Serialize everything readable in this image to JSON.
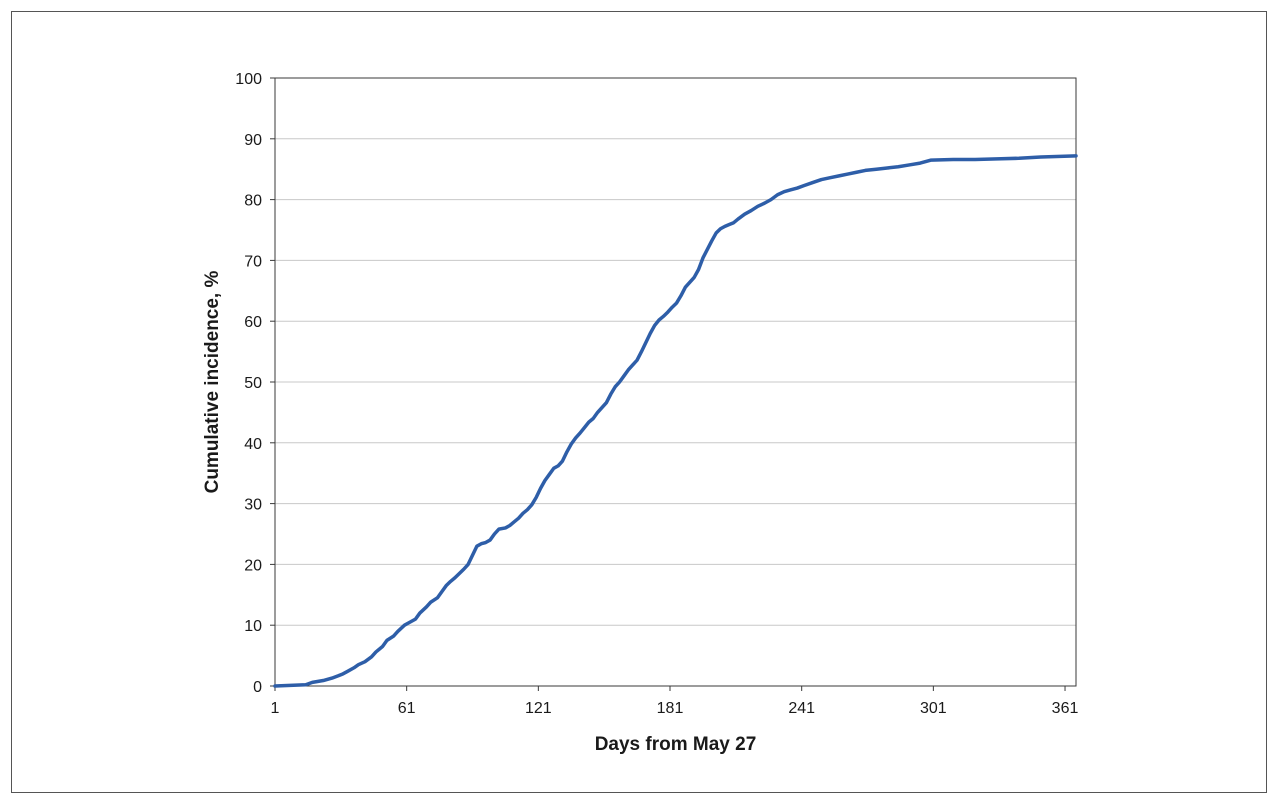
{
  "chart_data": {
    "type": "line",
    "title": "",
    "xlabel": "Days from May 27",
    "ylabel": "Cumulative incidence, %",
    "xlim": [
      1,
      366
    ],
    "ylim": [
      0,
      100
    ],
    "x_ticks": [
      1,
      61,
      121,
      181,
      241,
      301,
      361
    ],
    "y_ticks": [
      0,
      10,
      20,
      30,
      40,
      50,
      60,
      70,
      80,
      90,
      100
    ],
    "grid": "horizontal",
    "line_color": "#2e5ea8",
    "series": [
      {
        "x": [
          1,
          15,
          18,
          23,
          27,
          30,
          32,
          34,
          37,
          39,
          42,
          45,
          47,
          50,
          52,
          55,
          57,
          60,
          62,
          65,
          67,
          70,
          72,
          75,
          77,
          79,
          81,
          83,
          85,
          87,
          89,
          91,
          93,
          95,
          97,
          99,
          101,
          103,
          106,
          108,
          110,
          112,
          114,
          116,
          118,
          120,
          122,
          124,
          126,
          128,
          130,
          132,
          134,
          136,
          138,
          140,
          142,
          144,
          146,
          148,
          150,
          152,
          154,
          156,
          158,
          160,
          162,
          164,
          166,
          168,
          170,
          172,
          174,
          176,
          178,
          180,
          182,
          184,
          186,
          188,
          190,
          192,
          194,
          196,
          198,
          200,
          202,
          204,
          206,
          208,
          210,
          212,
          215,
          218,
          221,
          224,
          227,
          230,
          233,
          236,
          239,
          242,
          246,
          250,
          254,
          258,
          262,
          266,
          270,
          275,
          280,
          285,
          290,
          295,
          300,
          310,
          320,
          330,
          340,
          350,
          366
        ],
        "y": [
          0,
          0.2,
          0.6,
          0.9,
          1.3,
          1.7,
          2.0,
          2.4,
          3.0,
          3.5,
          4.0,
          4.8,
          5.6,
          6.5,
          7.5,
          8.2,
          9.0,
          10.0,
          10.4,
          11.0,
          12.0,
          13.0,
          13.8,
          14.5,
          15.5,
          16.5,
          17.2,
          17.8,
          18.5,
          19.2,
          20.0,
          21.5,
          23.0,
          23.4,
          23.6,
          24.0,
          25.0,
          25.8,
          26.0,
          26.4,
          27.0,
          27.6,
          28.4,
          29.0,
          29.8,
          31.0,
          32.5,
          33.8,
          34.8,
          35.8,
          36.2,
          37.0,
          38.5,
          39.8,
          40.8,
          41.6,
          42.5,
          43.4,
          44.0,
          45.0,
          45.8,
          46.6,
          48.0,
          49.2,
          50.0,
          51.0,
          52.0,
          52.8,
          53.6,
          55.0,
          56.5,
          58.0,
          59.3,
          60.2,
          60.8,
          61.5,
          62.3,
          63.0,
          64.2,
          65.6,
          66.4,
          67.2,
          68.5,
          70.4,
          71.8,
          73.2,
          74.5,
          75.2,
          75.6,
          75.9,
          76.2,
          76.8,
          77.6,
          78.2,
          78.9,
          79.4,
          80.0,
          80.8,
          81.3,
          81.6,
          81.9,
          82.3,
          82.8,
          83.3,
          83.6,
          83.9,
          84.2,
          84.5,
          84.8,
          85.0,
          85.2,
          85.4,
          85.7,
          86.0,
          86.5,
          86.6,
          86.6,
          86.7,
          86.8,
          87.0,
          87.2
        ]
      }
    ]
  }
}
